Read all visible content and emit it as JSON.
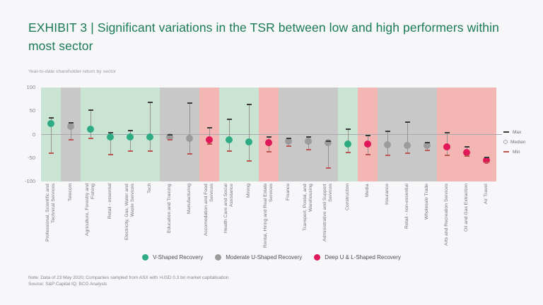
{
  "slide": {
    "title": "EXHIBIT 3 | Significant variations in the TSR between low and high performers within most sector",
    "note_line1": "Note: Data of 23 May 2020; Companies sampled from ASX with >USD 0.3 bn market capitalisation",
    "note_line2": "Source: S&P Capital IQ; BCG Analysis"
  },
  "chart_data": {
    "type": "scatter",
    "subtype": "dot-with-min-max-range",
    "title": "Year-to-date shareholder return by sector",
    "ylabel": "Year-to-date shareholder return",
    "ylim": [
      -100,
      100
    ],
    "yticks": [
      100,
      50,
      0,
      -50,
      -100
    ],
    "grid": false,
    "range_legend": [
      {
        "key": "max",
        "label": "Max"
      },
      {
        "key": "median",
        "label": "Median"
      },
      {
        "key": "min",
        "label": "Min"
      }
    ],
    "groups": [
      {
        "key": "v",
        "label": "V-Shaped Recovery",
        "dot_color": "#2dab82",
        "band_color": "#c9e4d3"
      },
      {
        "key": "u",
        "label": "Moderate U-Shaped Recovery",
        "dot_color": "#9b9b9b",
        "band_color": "#c8c8c8"
      },
      {
        "key": "l",
        "label": "Deep U & L-Shaped Recovery",
        "dot_color": "#e01758",
        "band_color": "#f3b6b2"
      }
    ],
    "sectors": [
      {
        "label": "Professional, Scientific and Technical Services",
        "group": "v",
        "max": 36,
        "median": 23,
        "min": -40
      },
      {
        "label": "Telecom",
        "group": "u",
        "max": 25,
        "median": 18,
        "min": -11
      },
      {
        "label": "Agriculture, Forestry and Fishing",
        "group": "v",
        "max": 52,
        "median": 11,
        "min": -8
      },
      {
        "label": "Retail - essential",
        "group": "v",
        "max": 4,
        "median": -5,
        "min": -43
      },
      {
        "label": "Electricity, Gas, Water and Waste Services",
        "group": "v",
        "max": 8,
        "median": -5,
        "min": -36
      },
      {
        "label": "Tech",
        "group": "v",
        "max": 68,
        "median": -5,
        "min": -35
      },
      {
        "label": "Education and Training",
        "group": "u",
        "max": 0,
        "median": -6,
        "min": -12
      },
      {
        "label": "Manufacturing",
        "group": "u",
        "max": 67,
        "median": -9,
        "min": -42
      },
      {
        "label": "Accomodation and Food Services",
        "group": "l",
        "max": 14,
        "median": -11,
        "min": -20
      },
      {
        "label": "Health Care and Social Assistance",
        "group": "v",
        "max": 32,
        "median": -11,
        "min": -36
      },
      {
        "label": "Mining",
        "group": "v",
        "max": 64,
        "median": -16,
        "min": -57
      },
      {
        "label": "Rental, Hiring and Real Estate Services",
        "group": "l",
        "max": -6,
        "median": -18,
        "min": -37
      },
      {
        "label": "Finance",
        "group": "u",
        "max": -8,
        "median": -15,
        "min": -25
      },
      {
        "label": "Transport, Postal, and Warehousing",
        "group": "u",
        "max": -6,
        "median": -15,
        "min": -32
      },
      {
        "label": "Administrative and Support Services",
        "group": "u",
        "max": -14,
        "median": -17,
        "min": -71
      },
      {
        "label": "Construction",
        "group": "v",
        "max": 12,
        "median": -20,
        "min": -39
      },
      {
        "label": "Media",
        "group": "l",
        "max": -3,
        "median": -21,
        "min": -43
      },
      {
        "label": "Insurance",
        "group": "u",
        "max": 7,
        "median": -22,
        "min": -44
      },
      {
        "label": "Retail - non-essential",
        "group": "u",
        "max": 27,
        "median": -23,
        "min": -40
      },
      {
        "label": "Wholesale Trade",
        "group": "u",
        "max": -18,
        "median": -23,
        "min": -34
      },
      {
        "label": "Arts and Recreation Services",
        "group": "l",
        "max": 4,
        "median": -26,
        "min": -45
      },
      {
        "label": "Oil and Gas Extraction",
        "group": "l",
        "max": -26,
        "median": -38,
        "min": -46
      },
      {
        "label": "Air Travel",
        "group": "l",
        "max": -49,
        "median": -55,
        "min": -59
      }
    ]
  },
  "colors": {
    "background": "#f7f7fa",
    "title": "#1a7a55",
    "max_cap": "#3a3a3a",
    "min_cap": "#bb5550",
    "whisker": "#98928f",
    "zero_line": "#a9a9b0"
  }
}
